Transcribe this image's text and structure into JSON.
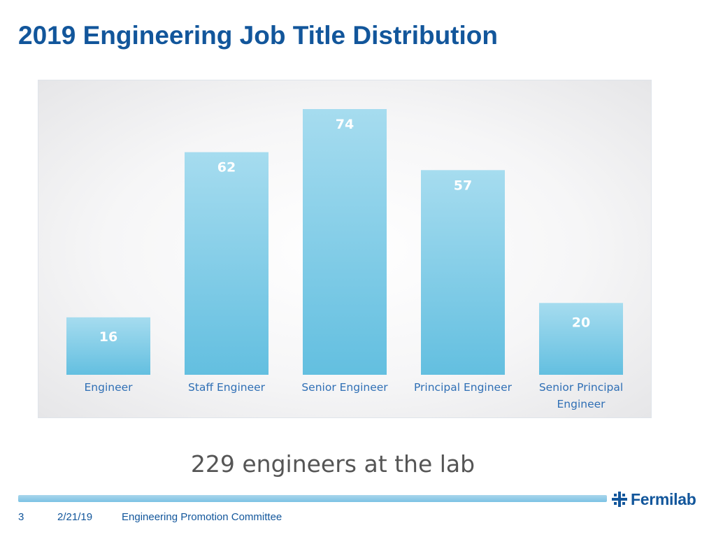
{
  "slide": {
    "title": "2019 Engineering Job Title Distribution",
    "summary": "229 engineers at the lab"
  },
  "chart_data": {
    "type": "bar",
    "title": "",
    "xlabel": "",
    "ylabel": "",
    "categories": [
      "Engineer",
      "Staff Engineer",
      "Senior Engineer",
      "Principal Engineer",
      "Senior Principal Engineer"
    ],
    "category_lines": [
      [
        "Engineer"
      ],
      [
        "Staff Engineer"
      ],
      [
        "Senior Engineer"
      ],
      [
        "Principal Engineer"
      ],
      [
        "Senior Principal",
        "Engineer"
      ]
    ],
    "values": [
      16,
      62,
      74,
      57,
      20
    ],
    "data_labels": [
      "16",
      "62",
      "74",
      "57",
      "20"
    ],
    "ylim": [
      0,
      74
    ],
    "grid": false,
    "legend": "none",
    "colors": {
      "bar_top": "#a6dcef",
      "bar_bottom": "#63bfe0",
      "data_label": "#ffffff",
      "category_label": "#2f6fb5"
    }
  },
  "footer": {
    "page": "3",
    "date": "2/21/19",
    "org": "Engineering Promotion Committee",
    "logo": "Fermilab",
    "logo_icon": "fermilab-logo-icon"
  },
  "colors": {
    "title": "#12569b",
    "summary": "#555555",
    "footer_rule": "#7cc2e4"
  }
}
